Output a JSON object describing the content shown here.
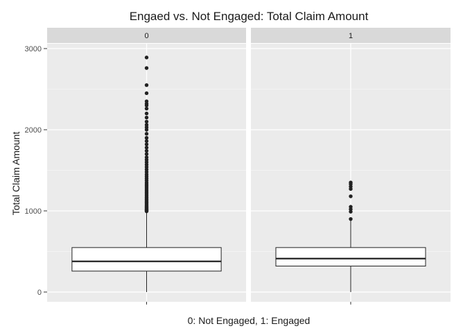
{
  "chart_data": {
    "type": "boxplot",
    "title": "Engaed vs. Not Engaged: Total Claim Amount",
    "xlabel": "0: Not Engaged, 1: Engaged",
    "ylabel": "Total Claim Amount",
    "ylim": [
      -120,
      3060
    ],
    "yticks": [
      0,
      1000,
      2000,
      3000
    ],
    "grid": true,
    "facets": [
      {
        "label": "0",
        "box": {
          "min": 0,
          "q1": 258,
          "median": 378,
          "q3": 548,
          "max": 990
        },
        "outliers": [
          995,
          1002,
          1008,
          1015,
          1022,
          1030,
          1040,
          1050,
          1060,
          1072,
          1085,
          1098,
          1110,
          1125,
          1140,
          1155,
          1170,
          1190,
          1210,
          1230,
          1250,
          1270,
          1290,
          1310,
          1330,
          1350,
          1375,
          1400,
          1425,
          1450,
          1480,
          1510,
          1540,
          1570,
          1600,
          1630,
          1660,
          1700,
          1740,
          1780,
          1820,
          1860,
          1900,
          1950,
          2000,
          2030,
          2060,
          2100,
          2150,
          2200,
          2260,
          2300,
          2320,
          2350,
          2450,
          2550,
          2760,
          2890
        ]
      },
      {
        "label": "1",
        "box": {
          "min": 0,
          "q1": 320,
          "median": 412,
          "q3": 548,
          "max": 900
        },
        "outliers": [
          900,
          990,
          1020,
          1050,
          1180,
          1270,
          1300,
          1330,
          1350
        ]
      }
    ]
  },
  "colors": {
    "panel_bg": "#ebebeb",
    "strip_bg": "#d9d9d9",
    "grid": "#ffffff",
    "box_fill": "#ffffff",
    "ink": "#222222"
  }
}
